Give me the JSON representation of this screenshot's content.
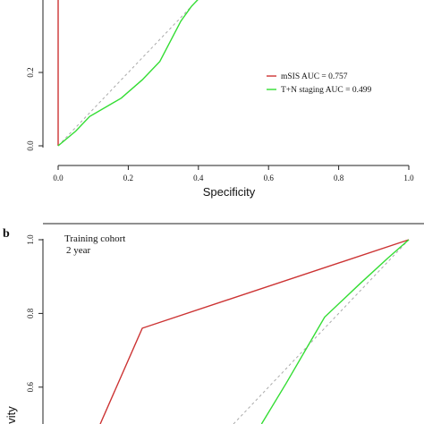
{
  "chart_data": [
    {
      "type": "line",
      "xlabel": "Specificity",
      "ylabel": "",
      "xlim": [
        0.0,
        1.0
      ],
      "ylim": [
        0.0,
        0.4
      ],
      "x_inverted": false,
      "x_ticks": [
        "0.0",
        "0.2",
        "0.4",
        "0.6",
        "0.8",
        "1.0"
      ],
      "y_ticks": [
        "0.0",
        "0.2"
      ],
      "legend": {
        "placement": "right"
      },
      "series": [
        {
          "name": "mSIS AUC = 0.757",
          "color": "#cc3333",
          "points": [
            [
              0.0,
              0.0
            ],
            [
              0.0,
              0.4
            ]
          ]
        },
        {
          "name": "T+N staging AUC = 0.499",
          "color": "#33dd33",
          "points": [
            [
              0.0,
              0.0
            ],
            [
              0.05,
              0.04
            ],
            [
              0.09,
              0.08
            ],
            [
              0.18,
              0.13
            ],
            [
              0.24,
              0.18
            ],
            [
              0.29,
              0.23
            ],
            [
              0.35,
              0.34
            ],
            [
              0.38,
              0.38
            ],
            [
              0.4,
              0.4
            ]
          ]
        }
      ],
      "reference_line": {
        "style": "dashed",
        "color": "#aaaaaa",
        "points": [
          [
            0.0,
            0.0
          ],
          [
            0.4,
            0.4
          ]
        ]
      }
    },
    {
      "type": "line",
      "panel_label": "b",
      "annotation_line1": "Training cohort",
      "annotation_line2": "2 year",
      "ylabel": "vity",
      "xlim": [
        0.0,
        1.0
      ],
      "ylim": [
        0.5,
        1.0
      ],
      "y_ticks": [
        "1.0",
        "0.8",
        "0.6"
      ],
      "series": [
        {
          "color": "#cc3333",
          "points": [
            [
              0.12,
              0.5
            ],
            [
              0.24,
              0.76
            ],
            [
              1.0,
              1.0
            ]
          ]
        },
        {
          "color": "#33dd33",
          "points": [
            [
              0.58,
              0.5
            ],
            [
              0.65,
              0.61
            ],
            [
              0.76,
              0.79
            ],
            [
              0.86,
              0.88
            ],
            [
              0.94,
              0.95
            ],
            [
              1.0,
              1.0
            ]
          ]
        }
      ],
      "reference_line": {
        "style": "dashed",
        "color": "#aaaaaa",
        "points": [
          [
            0.5,
            0.5
          ],
          [
            1.0,
            1.0
          ]
        ]
      }
    }
  ]
}
